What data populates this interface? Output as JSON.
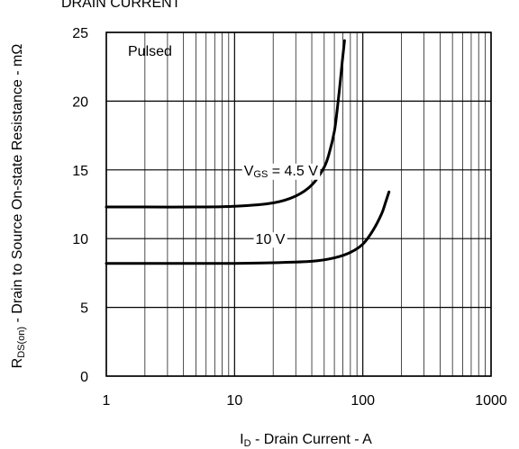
{
  "chart_data": {
    "type": "line",
    "title": "DRAIN CURRENT",
    "xlabel": {
      "main": "I",
      "sub": "D",
      "rest": " - Drain Current - A"
    },
    "ylabel": {
      "main": "R",
      "sub": "DS(on)",
      "rest": " - Drain to Source On-state Resistance - mΩ"
    },
    "x_scale": "log",
    "xlim": [
      1,
      1000
    ],
    "ylim": [
      0,
      25
    ],
    "x_ticks": [
      1,
      10,
      100,
      1000
    ],
    "x_tick_labels": [
      "1",
      "10",
      "100",
      "1000"
    ],
    "y_ticks": [
      0,
      5,
      10,
      15,
      20,
      25
    ],
    "y_tick_labels": [
      "0",
      "5",
      "10",
      "15",
      "20",
      "25"
    ],
    "grid": true,
    "annotation": "Pulsed",
    "colors": {
      "line": "#000000",
      "grid": "#000000",
      "background": "#ffffff"
    },
    "series": [
      {
        "label": {
          "main": "V",
          "sub": "GS",
          "rest": " = 4.5 V"
        },
        "label_at": [
          23,
          15
        ],
        "x": [
          1,
          2,
          5,
          10,
          20,
          30,
          40,
          50,
          55,
          60,
          63,
          66,
          69,
          72
        ],
        "y": [
          12.3,
          12.3,
          12.3,
          12.35,
          12.6,
          13.1,
          13.9,
          15.2,
          16.3,
          17.8,
          19.3,
          21.0,
          22.8,
          24.4
        ]
      },
      {
        "label": {
          "main": "10 V",
          "sub": "",
          "rest": ""
        },
        "label_at": [
          19,
          10
        ],
        "x": [
          1,
          2,
          5,
          10,
          20,
          40,
          60,
          80,
          100,
          120,
          140,
          150,
          160
        ],
        "y": [
          8.2,
          8.2,
          8.2,
          8.2,
          8.25,
          8.35,
          8.6,
          9.0,
          9.6,
          10.6,
          11.8,
          12.6,
          13.4
        ]
      }
    ]
  }
}
